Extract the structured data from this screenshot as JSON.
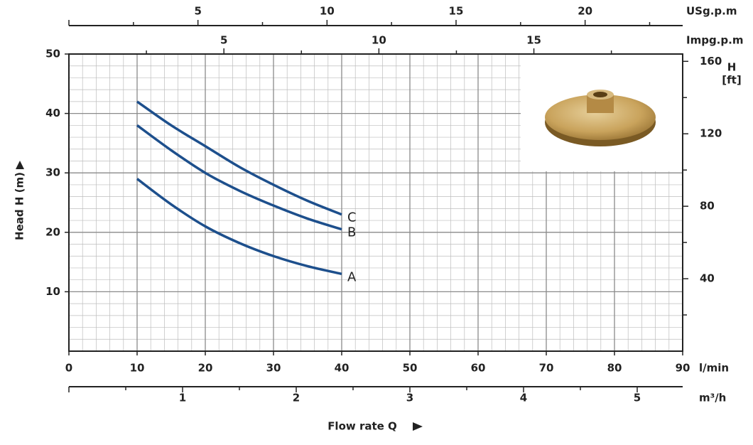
{
  "chart_data": {
    "type": "line",
    "x_label": "Flow rate Q",
    "y_label": "Head H (m)",
    "x_unit": "l/min",
    "xlim": [
      0,
      90
    ],
    "xticks": [
      0,
      10,
      20,
      30,
      40,
      50,
      60,
      70,
      80,
      90
    ],
    "ylim": [
      0,
      50
    ],
    "yticks": [
      10,
      20,
      30,
      40,
      50
    ],
    "y2lim": [
      0,
      164.04
    ],
    "y2ticks": [
      40,
      80,
      120,
      160
    ],
    "y2_label": [
      "H",
      "[ft]"
    ],
    "grid": true,
    "x_top": {
      "label": "USg.p.m",
      "lim": [
        0,
        23.78
      ],
      "ticks": [
        5,
        10,
        15,
        20
      ]
    },
    "x_top2": {
      "label": "Impg.p.m",
      "lim": [
        0,
        19.8
      ],
      "ticks": [
        5,
        10,
        15
      ]
    },
    "x_bottom2": {
      "label": "m³/h",
      "lim": [
        0,
        5.4
      ],
      "ticks": [
        1,
        2,
        3,
        4,
        5
      ]
    },
    "x": [
      10,
      15,
      20,
      25,
      30,
      35,
      40
    ],
    "series": [
      {
        "name": "A",
        "color": "#1d4f8c",
        "values": [
          29,
          24.7,
          21,
          18.2,
          16,
          14.3,
          13
        ]
      },
      {
        "name": "B",
        "color": "#1d4f8c",
        "values": [
          38,
          33.8,
          30,
          27,
          24.5,
          22.3,
          20.5
        ]
      },
      {
        "name": "C",
        "color": "#1d4f8c",
        "values": [
          42,
          38,
          34.5,
          31,
          28,
          25.3,
          23
        ]
      }
    ]
  }
}
